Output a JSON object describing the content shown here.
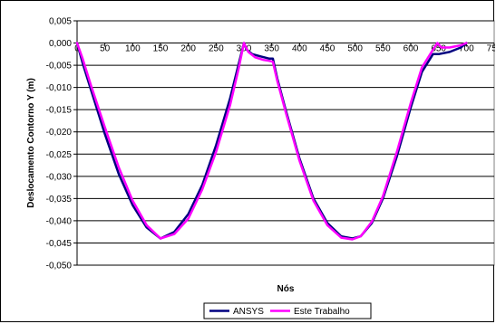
{
  "chart_data": {
    "type": "line",
    "title": "",
    "xlabel": "Nós",
    "ylabel": "Deslocamento Contorno Y (m)",
    "xlim": [
      0,
      750
    ],
    "ylim": [
      -0.05,
      0.005
    ],
    "x_ticks": [
      0,
      50,
      100,
      150,
      200,
      250,
      300,
      350,
      400,
      450,
      500,
      550,
      600,
      650,
      700,
      750
    ],
    "y_ticks": [
      0.005,
      0.0,
      -0.005,
      -0.01,
      -0.015,
      -0.02,
      -0.025,
      -0.03,
      -0.035,
      -0.04,
      -0.045,
      -0.05
    ],
    "x_tick_labels": [
      "0",
      "50",
      "100",
      "150",
      "200",
      "250",
      "300",
      "350",
      "400",
      "450",
      "500",
      "550",
      "600",
      "650",
      "700",
      "750"
    ],
    "y_tick_labels": [
      "0,005",
      "0,000",
      "-0,005",
      "-0,010",
      "-0,015",
      "-0,020",
      "-0,025",
      "-0,030",
      "-0,035",
      "-0,040",
      "-0,045",
      "-0,050"
    ],
    "grid": "horizontal",
    "legend_position": "bottom",
    "series": [
      {
        "name": "ANSYS",
        "color": "#000080",
        "points": [
          [
            0,
            0.0
          ],
          [
            10,
            -0.0045
          ],
          [
            25,
            -0.0105
          ],
          [
            50,
            -0.0205
          ],
          [
            75,
            -0.0295
          ],
          [
            100,
            -0.0365
          ],
          [
            125,
            -0.0415
          ],
          [
            150,
            -0.044
          ],
          [
            175,
            -0.0425
          ],
          [
            200,
            -0.0385
          ],
          [
            225,
            -0.032
          ],
          [
            250,
            -0.023
          ],
          [
            275,
            -0.0125
          ],
          [
            290,
            -0.005
          ],
          [
            300,
            0.0
          ],
          [
            305,
            -0.0015
          ],
          [
            315,
            -0.0025
          ],
          [
            330,
            -0.003
          ],
          [
            345,
            -0.0035
          ],
          [
            352,
            -0.0035
          ],
          [
            360,
            -0.008
          ],
          [
            375,
            -0.015
          ],
          [
            400,
            -0.026
          ],
          [
            425,
            -0.035
          ],
          [
            450,
            -0.0405
          ],
          [
            475,
            -0.0435
          ],
          [
            495,
            -0.044
          ],
          [
            510,
            -0.0435
          ],
          [
            530,
            -0.0405
          ],
          [
            550,
            -0.035
          ],
          [
            575,
            -0.0255
          ],
          [
            600,
            -0.0145
          ],
          [
            620,
            -0.0065
          ],
          [
            640,
            -0.0025
          ],
          [
            650,
            -0.0025
          ],
          [
            670,
            -0.002
          ],
          [
            690,
            -0.001
          ],
          [
            700,
            0.0
          ]
        ]
      },
      {
        "name": "Este Trabalho",
        "color": "#FF00FF",
        "points": [
          [
            0,
            0.0
          ],
          [
            10,
            -0.0035
          ],
          [
            25,
            -0.0095
          ],
          [
            50,
            -0.019
          ],
          [
            75,
            -0.028
          ],
          [
            100,
            -0.0355
          ],
          [
            125,
            -0.041
          ],
          [
            150,
            -0.044
          ],
          [
            175,
            -0.043
          ],
          [
            200,
            -0.0395
          ],
          [
            225,
            -0.033
          ],
          [
            250,
            -0.0245
          ],
          [
            275,
            -0.014
          ],
          [
            290,
            -0.006
          ],
          [
            300,
            0.0
          ],
          [
            308,
            -0.002
          ],
          [
            320,
            -0.0032
          ],
          [
            335,
            -0.0038
          ],
          [
            345,
            -0.004
          ],
          [
            352,
            -0.0042
          ],
          [
            360,
            -0.0085
          ],
          [
            375,
            -0.0155
          ],
          [
            400,
            -0.0265
          ],
          [
            425,
            -0.0355
          ],
          [
            450,
            -0.041
          ],
          [
            475,
            -0.0438
          ],
          [
            495,
            -0.0442
          ],
          [
            510,
            -0.0435
          ],
          [
            530,
            -0.0402
          ],
          [
            550,
            -0.0345
          ],
          [
            575,
            -0.0245
          ],
          [
            600,
            -0.0135
          ],
          [
            620,
            -0.0055
          ],
          [
            640,
            -0.0015
          ],
          [
            648,
            0.0
          ],
          [
            655,
            -0.001
          ],
          [
            670,
            -0.001
          ],
          [
            690,
            -0.0005
          ],
          [
            700,
            0.0
          ]
        ]
      }
    ]
  }
}
